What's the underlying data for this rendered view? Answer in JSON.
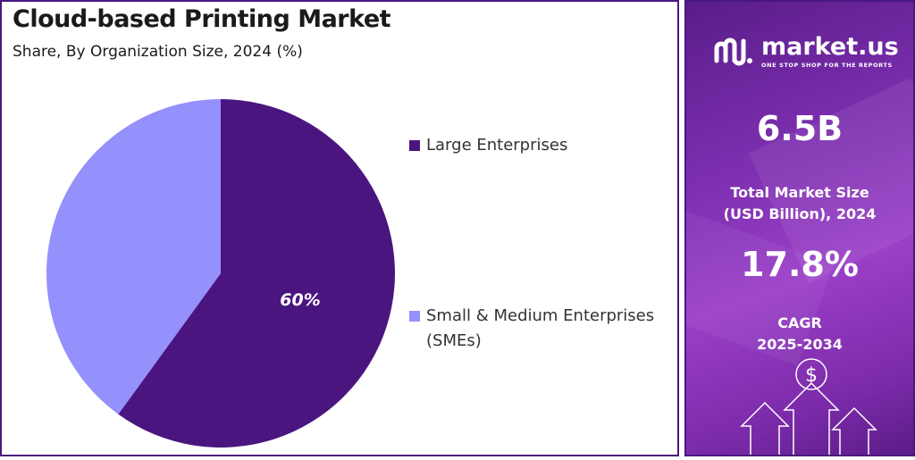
{
  "chart_data": {
    "type": "pie",
    "title": "Cloud-based Printing Market",
    "subtitle": "Share, By Organization Size, 2024 (%)",
    "slices": [
      {
        "label": "Large Enterprises",
        "value": 60,
        "color": "#4b1580",
        "data_label": "60%"
      },
      {
        "label": "Small & Medium Enterprises (SMEs)",
        "value": 40,
        "color": "#9490fc",
        "data_label": ""
      }
    ],
    "legend_placement": "right"
  },
  "legend": {
    "items": [
      {
        "label_line1": "Large Enterprises",
        "label_line2": "",
        "color": "#4b1580"
      },
      {
        "label_line1": "Small & Medium Enterprises",
        "label_line2": "(SMEs)",
        "color": "#9490fc"
      }
    ]
  },
  "sidebar": {
    "logo_name": "market.us",
    "logo_tagline": "ONE STOP SHOP FOR THE REPORTS",
    "market_size_value": "6.5B",
    "market_size_label_line1": "Total Market Size",
    "market_size_label_line2": "(USD Billion), 2024",
    "cagr_value": "17.8%",
    "cagr_label_line1": "CAGR",
    "cagr_label_line2": "2025-2034",
    "dollar_symbol": "$",
    "icons": [
      "logo-icon",
      "dollar-coin-icon",
      "arrow-up-icon"
    ]
  },
  "colors": {
    "accent": "#4a1780",
    "sidebar_gradient_start": "#5a1d8a",
    "sidebar_gradient_mid": "#9a3fc7"
  }
}
